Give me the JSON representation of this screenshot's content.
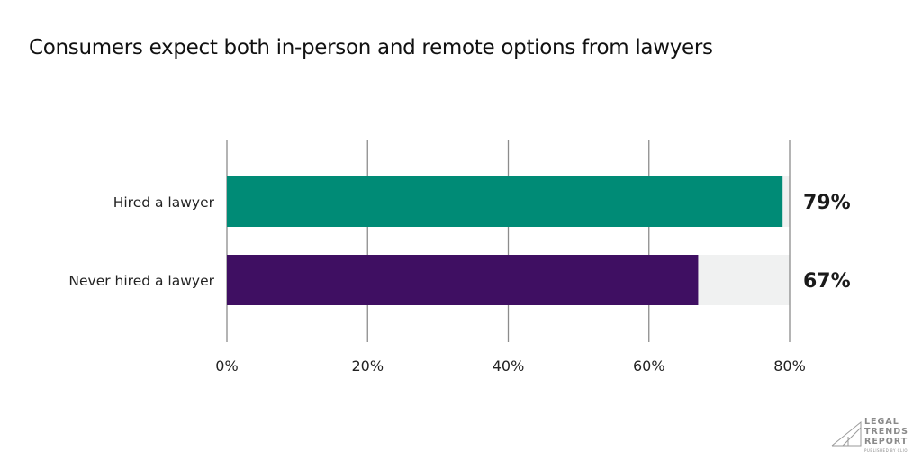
{
  "chart_data": {
    "type": "bar",
    "orientation": "horizontal",
    "title": "Consumers expect both in-person and remote options from lawyers",
    "categories": [
      "Hired a lawyer",
      "Never hired a lawyer"
    ],
    "values": [
      79,
      67
    ],
    "value_labels": [
      "79%",
      "67%"
    ],
    "colors": [
      "#008b76",
      "#3f0f62"
    ],
    "background_bar_color": "#f0f1f1",
    "xlim": [
      0,
      80
    ],
    "xticks": [
      0,
      20,
      40,
      60,
      80
    ],
    "xtick_labels": [
      "0%",
      "20%",
      "40%",
      "60%",
      "80%"
    ],
    "grid": true,
    "xlabel": "",
    "ylabel": ""
  },
  "branding": {
    "logo_lines": [
      "LEGAL",
      "TRENDS",
      "REPORT"
    ],
    "logo_sub": "PUBLISHED BY CLIO"
  }
}
